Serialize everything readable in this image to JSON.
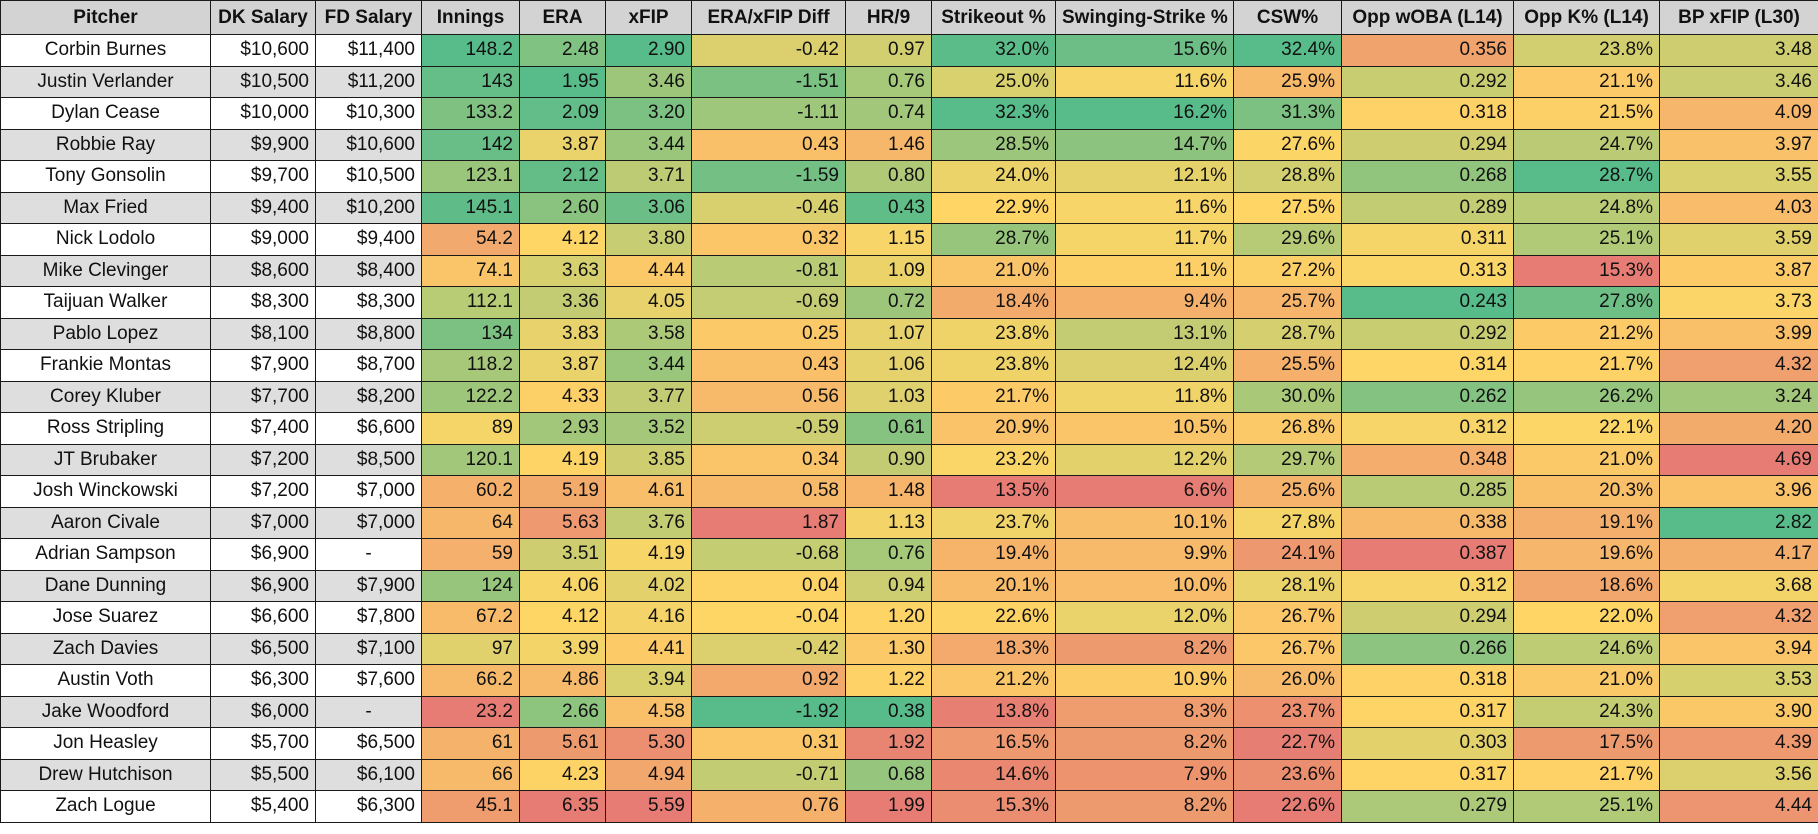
{
  "columns": [
    "Pitcher",
    "DK Salary",
    "FD Salary",
    "Innings",
    "ERA",
    "xFIP",
    "ERA/xFIP Diff",
    "HR/9",
    "Strikeout %",
    "Swinging-Strike %",
    "CSW%",
    "Opp wOBA (L14)",
    "Opp K% (L14)",
    "BP xFIP (L30)"
  ],
  "colors": {
    "good": "#57bb8a",
    "mid": "#ffd666",
    "bad": "#e67c73"
  },
  "rows": [
    [
      "Corbin Burnes",
      "$10,600",
      "$11,400",
      "148.2",
      "2.48",
      "2.90",
      "-0.42",
      "0.97",
      "32.0%",
      "15.6%",
      "32.4%",
      "0.356",
      "23.8%",
      "3.48"
    ],
    [
      "Justin Verlander",
      "$10,500",
      "$11,200",
      "143",
      "1.95",
      "3.46",
      "-1.51",
      "0.76",
      "25.0%",
      "11.6%",
      "25.9%",
      "0.292",
      "21.1%",
      "3.46"
    ],
    [
      "Dylan Cease",
      "$10,000",
      "$10,300",
      "133.2",
      "2.09",
      "3.20",
      "-1.11",
      "0.74",
      "32.3%",
      "16.2%",
      "31.3%",
      "0.318",
      "21.5%",
      "4.09"
    ],
    [
      "Robbie Ray",
      "$9,900",
      "$10,600",
      "142",
      "3.87",
      "3.44",
      "0.43",
      "1.46",
      "28.5%",
      "14.7%",
      "27.6%",
      "0.294",
      "24.7%",
      "3.97"
    ],
    [
      "Tony Gonsolin",
      "$9,700",
      "$10,500",
      "123.1",
      "2.12",
      "3.71",
      "-1.59",
      "0.80",
      "24.0%",
      "12.1%",
      "28.8%",
      "0.268",
      "28.7%",
      "3.55"
    ],
    [
      "Max Fried",
      "$9,400",
      "$10,200",
      "145.1",
      "2.60",
      "3.06",
      "-0.46",
      "0.43",
      "22.9%",
      "11.6%",
      "27.5%",
      "0.289",
      "24.8%",
      "4.03"
    ],
    [
      "Nick Lodolo",
      "$9,000",
      "$9,400",
      "54.2",
      "4.12",
      "3.80",
      "0.32",
      "1.15",
      "28.7%",
      "11.7%",
      "29.6%",
      "0.311",
      "25.1%",
      "3.59"
    ],
    [
      "Mike Clevinger",
      "$8,600",
      "$8,400",
      "74.1",
      "3.63",
      "4.44",
      "-0.81",
      "1.09",
      "21.0%",
      "11.1%",
      "27.2%",
      "0.313",
      "15.3%",
      "3.87"
    ],
    [
      "Taijuan Walker",
      "$8,300",
      "$8,300",
      "112.1",
      "3.36",
      "4.05",
      "-0.69",
      "0.72",
      "18.4%",
      "9.4%",
      "25.7%",
      "0.243",
      "27.8%",
      "3.73"
    ],
    [
      "Pablo Lopez",
      "$8,100",
      "$8,800",
      "134",
      "3.83",
      "3.58",
      "0.25",
      "1.07",
      "23.8%",
      "13.1%",
      "28.7%",
      "0.292",
      "21.2%",
      "3.99"
    ],
    [
      "Frankie Montas",
      "$7,900",
      "$8,700",
      "118.2",
      "3.87",
      "3.44",
      "0.43",
      "1.06",
      "23.8%",
      "12.4%",
      "25.5%",
      "0.314",
      "21.7%",
      "4.32"
    ],
    [
      "Corey Kluber",
      "$7,700",
      "$8,200",
      "122.2",
      "4.33",
      "3.77",
      "0.56",
      "1.03",
      "21.7%",
      "11.8%",
      "30.0%",
      "0.262",
      "26.2%",
      "3.24"
    ],
    [
      "Ross Stripling",
      "$7,400",
      "$6,600",
      "89",
      "2.93",
      "3.52",
      "-0.59",
      "0.61",
      "20.9%",
      "10.5%",
      "26.8%",
      "0.312",
      "22.1%",
      "4.20"
    ],
    [
      "JT Brubaker",
      "$7,200",
      "$8,500",
      "120.1",
      "4.19",
      "3.85",
      "0.34",
      "0.90",
      "23.2%",
      "12.2%",
      "29.7%",
      "0.348",
      "21.0%",
      "4.69"
    ],
    [
      "Josh Winckowski",
      "$7,200",
      "$7,000",
      "60.2",
      "5.19",
      "4.61",
      "0.58",
      "1.48",
      "13.5%",
      "6.6%",
      "25.6%",
      "0.285",
      "20.3%",
      "3.96"
    ],
    [
      "Aaron Civale",
      "$7,000",
      "$7,000",
      "64",
      "5.63",
      "3.76",
      "1.87",
      "1.13",
      "23.7%",
      "10.1%",
      "27.8%",
      "0.338",
      "19.1%",
      "2.82"
    ],
    [
      "Adrian Sampson",
      "$6,900",
      "-",
      "59",
      "3.51",
      "4.19",
      "-0.68",
      "0.76",
      "19.4%",
      "9.9%",
      "24.1%",
      "0.387",
      "19.6%",
      "4.17"
    ],
    [
      "Dane Dunning",
      "$6,900",
      "$7,900",
      "124",
      "4.06",
      "4.02",
      "0.04",
      "0.94",
      "20.1%",
      "10.0%",
      "28.1%",
      "0.312",
      "18.6%",
      "3.68"
    ],
    [
      "Jose Suarez",
      "$6,600",
      "$7,800",
      "67.2",
      "4.12",
      "4.16",
      "-0.04",
      "1.20",
      "22.6%",
      "12.0%",
      "26.7%",
      "0.294",
      "22.0%",
      "4.32"
    ],
    [
      "Zach Davies",
      "$6,500",
      "$7,100",
      "97",
      "3.99",
      "4.41",
      "-0.42",
      "1.30",
      "18.3%",
      "8.2%",
      "26.7%",
      "0.266",
      "24.6%",
      "3.94"
    ],
    [
      "Austin Voth",
      "$6,300",
      "$7,600",
      "66.2",
      "4.86",
      "3.94",
      "0.92",
      "1.22",
      "21.2%",
      "10.9%",
      "26.0%",
      "0.318",
      "21.0%",
      "3.53"
    ],
    [
      "Jake Woodford",
      "$6,000",
      "-",
      "23.2",
      "2.66",
      "4.58",
      "-1.92",
      "0.38",
      "13.8%",
      "8.3%",
      "23.7%",
      "0.317",
      "24.3%",
      "3.90"
    ],
    [
      "Jon Heasley",
      "$5,700",
      "$6,500",
      "61",
      "5.61",
      "5.30",
      "0.31",
      "1.92",
      "16.5%",
      "8.2%",
      "22.7%",
      "0.303",
      "17.5%",
      "4.39"
    ],
    [
      "Drew Hutchison",
      "$5,500",
      "$6,100",
      "66",
      "4.23",
      "4.94",
      "-0.71",
      "0.68",
      "14.6%",
      "7.9%",
      "23.6%",
      "0.317",
      "21.7%",
      "3.56"
    ],
    [
      "Zach Logue",
      "$5,400",
      "$6,300",
      "45.1",
      "6.35",
      "5.59",
      "0.76",
      "1.99",
      "15.3%",
      "8.2%",
      "22.6%",
      "0.279",
      "25.1%",
      "4.44"
    ]
  ]
}
